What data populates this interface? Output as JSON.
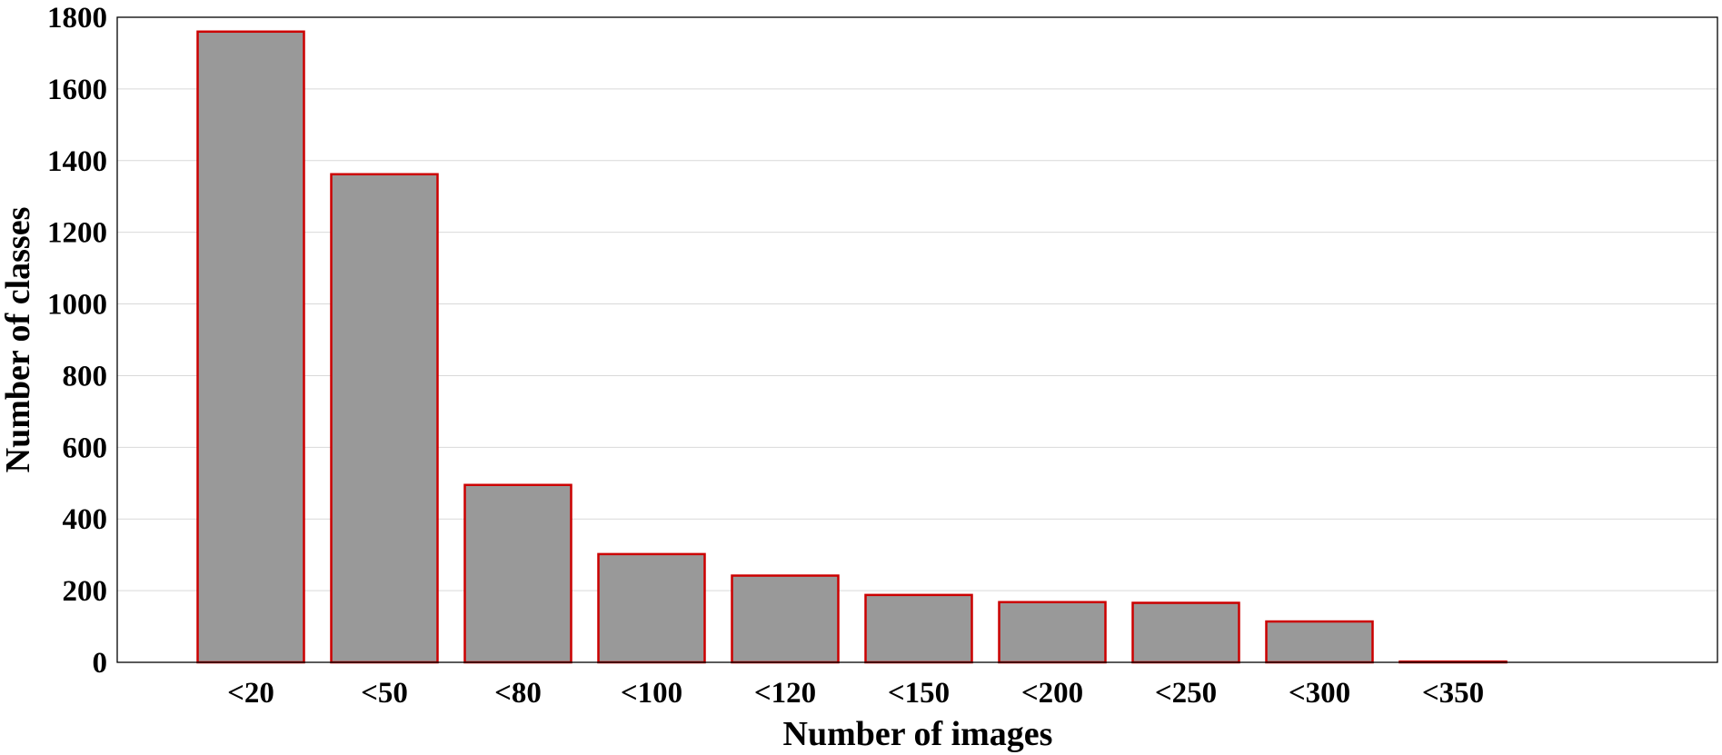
{
  "chart_data": {
    "type": "bar",
    "categories": [
      "<20",
      "<50",
      "<80",
      "<100",
      "<120",
      "<150",
      "<200",
      "<250",
      "<300",
      "<350"
    ],
    "values": [
      1760,
      1362,
      495,
      302,
      242,
      188,
      168,
      166,
      114,
      2
    ],
    "title": "",
    "xlabel": "Number of images",
    "ylabel": "Number of classes",
    "ylim": [
      0,
      1800
    ],
    "yticks": [
      "0",
      "200",
      "400",
      "600",
      "800",
      "1000",
      "1200",
      "1400",
      "1600",
      "1800"
    ],
    "grid": "horizontal",
    "legend": "none",
    "colors": {
      "bar_fill": "#999999",
      "bar_edge": "#cc0000",
      "grid": "#d9d9d9",
      "axis": "#000000"
    }
  }
}
